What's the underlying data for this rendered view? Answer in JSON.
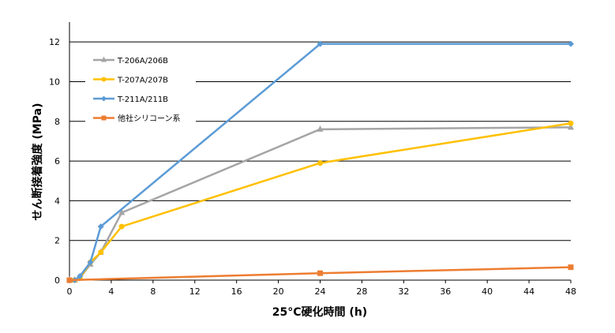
{
  "chart_data": {
    "type": "line",
    "xlabel": "25°C硬化時間 (h)",
    "ylabel": "せん断接着強度 (MPa)",
    "xlim": [
      0,
      48
    ],
    "ylim": [
      0,
      13
    ],
    "xticks": [
      0,
      4,
      8,
      12,
      16,
      20,
      24,
      28,
      32,
      36,
      40,
      44,
      48
    ],
    "yticks": [
      0,
      2,
      4,
      6,
      8,
      10,
      12
    ],
    "grid": "horizontal",
    "legend_position": "top-left",
    "series": [
      {
        "name": "T-206A/206B",
        "color": "#A5A5A5",
        "marker": "triangle",
        "x": [
          0,
          0.5,
          1,
          2,
          3,
          5,
          24,
          48
        ],
        "y": [
          0,
          0,
          0.1,
          0.8,
          1.4,
          3.4,
          7.6,
          7.7
        ]
      },
      {
        "name": "T-207A/207B",
        "color": "#FFC000",
        "marker": "circle",
        "x": [
          0,
          0.5,
          1,
          2,
          3,
          5,
          24,
          48
        ],
        "y": [
          0,
          0,
          0.1,
          0.9,
          1.4,
          2.7,
          5.9,
          7.9
        ]
      },
      {
        "name": "T-211A/211B",
        "color": "#5B9BD5",
        "marker": "diamond",
        "x": [
          0,
          0.5,
          1,
          2,
          3,
          24,
          48
        ],
        "y": [
          0,
          0,
          0.2,
          0.9,
          2.7,
          11.9,
          11.9
        ]
      },
      {
        "name": "他社シリコーン系",
        "color": "#ED7D31",
        "marker": "square",
        "x": [
          0,
          24,
          48
        ],
        "y": [
          0,
          0.35,
          0.65
        ]
      }
    ]
  }
}
